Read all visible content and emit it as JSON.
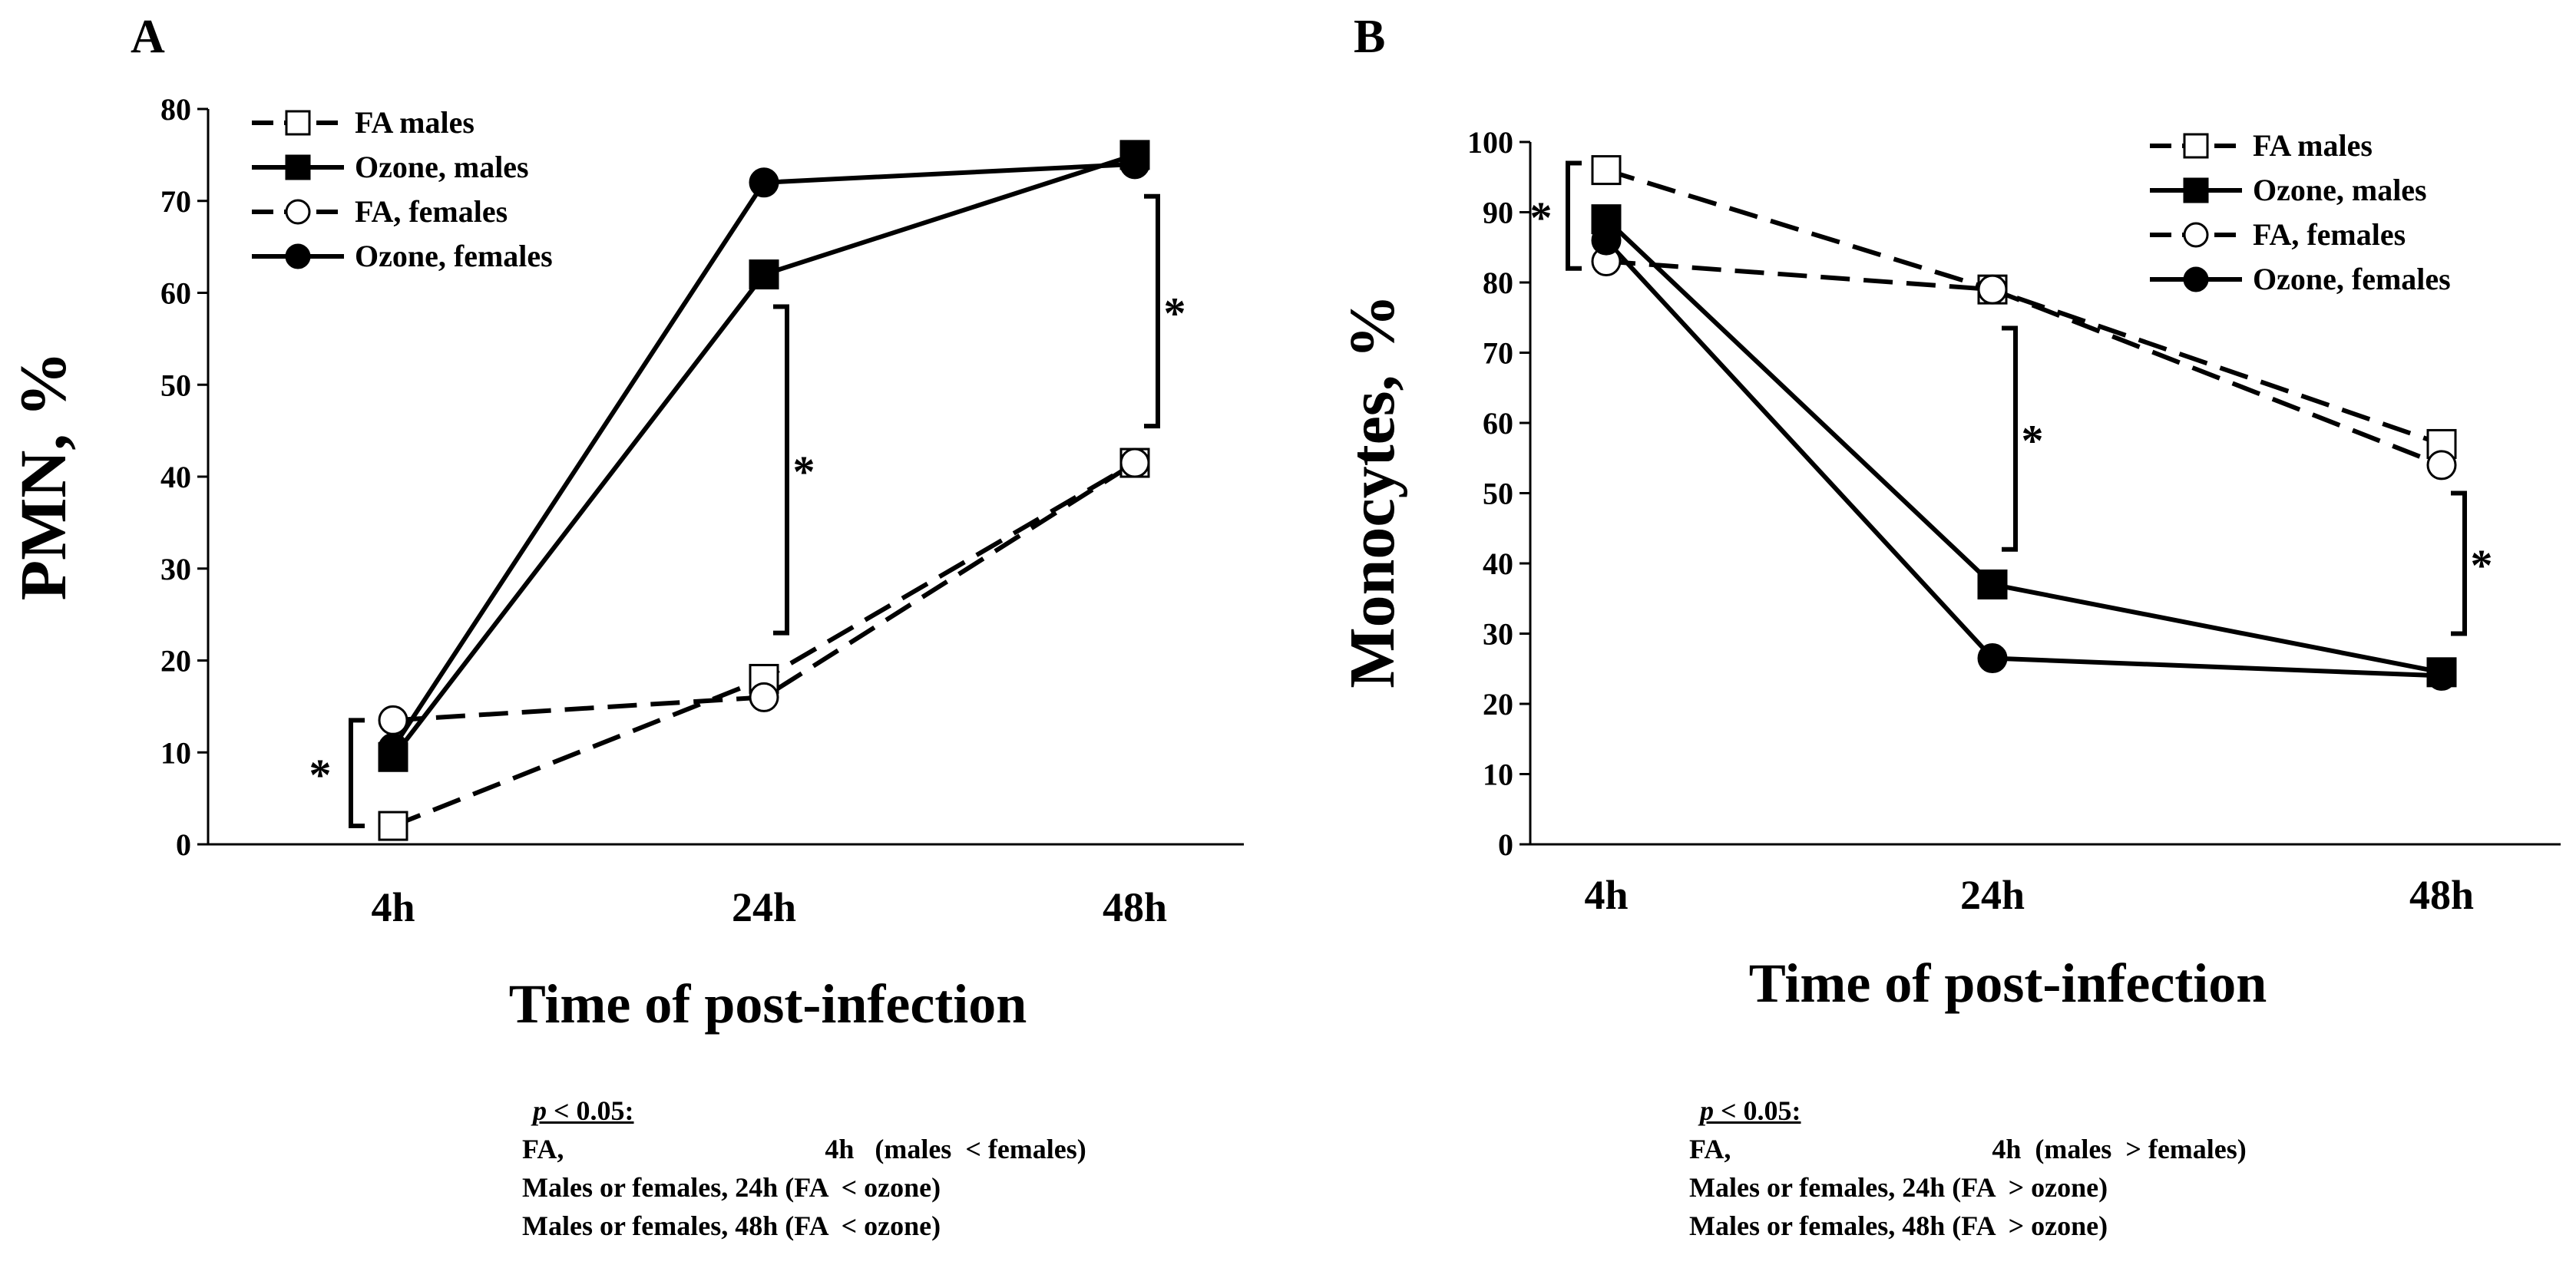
{
  "chart_data": [
    {
      "type": "line",
      "panel_label": "A",
      "categories": [
        "4h",
        "24h",
        "48h"
      ],
      "xlabel": "Time of post-infection",
      "ylabel": "PMN, %",
      "ylim": [
        0,
        80
      ],
      "yticks": [
        "0",
        "10",
        "20",
        "30",
        "40",
        "50",
        "60",
        "70",
        "80"
      ],
      "grid": false,
      "legend_position": "top-left",
      "series": [
        {
          "name": "FA males",
          "values": [
            2,
            18,
            41.5
          ],
          "line": "dashed",
          "marker": "open-square"
        },
        {
          "name": "Ozone, males",
          "values": [
            9.5,
            62,
            75
          ],
          "line": "solid",
          "marker": "filled-square"
        },
        {
          "name": "FA, females",
          "values": [
            13.5,
            16,
            41.5
          ],
          "line": "dashed",
          "marker": "open-circle"
        },
        {
          "name": "Ozone, females",
          "values": [
            10.5,
            72,
            74
          ],
          "line": "solid",
          "marker": "filled-circle"
        }
      ],
      "significance": [
        {
          "x": "4h",
          "from": 2,
          "to": 13.5,
          "label": "*"
        },
        {
          "x": "24h",
          "from": 23,
          "to": 58.5,
          "label": "*"
        },
        {
          "x": "48h",
          "from": 45.5,
          "to": 70.5,
          "label": "*"
        }
      ],
      "notes": {
        "header_italic": "p",
        "header_rest": " < 0.05:",
        "rows": [
          {
            "a": "FA,",
            "b": "4h   (males  < females)"
          },
          {
            "a": "Males or females, 24h (FA  < ozone)",
            "b": ""
          },
          {
            "a": "Males or females, 48h (FA  < ozone)",
            "b": ""
          }
        ]
      }
    },
    {
      "type": "line",
      "panel_label": "B",
      "categories": [
        "4h",
        "24h",
        "48h"
      ],
      "xlabel": "Time of post-infection",
      "ylabel": "Monocytes, %",
      "ylim": [
        0,
        100
      ],
      "yticks": [
        "0",
        "10",
        "20",
        "30",
        "40",
        "50",
        "60",
        "70",
        "80",
        "90",
        "100"
      ],
      "grid": false,
      "legend_position": "top-right",
      "series": [
        {
          "name": "FA males",
          "values": [
            96,
            79,
            57
          ],
          "line": "dashed",
          "marker": "open-square"
        },
        {
          "name": "Ozone, males",
          "values": [
            89,
            37,
            24.5
          ],
          "line": "solid",
          "marker": "filled-square"
        },
        {
          "name": "FA, females",
          "values": [
            83,
            79,
            54
          ],
          "line": "dashed",
          "marker": "open-circle"
        },
        {
          "name": "Ozone, females",
          "values": [
            86,
            26.5,
            24
          ],
          "line": "solid",
          "marker": "filled-circle"
        }
      ],
      "significance": [
        {
          "x": "4h",
          "from": 82,
          "to": 97,
          "label": "*"
        },
        {
          "x": "24h",
          "from": 42,
          "to": 73.5,
          "label": "*"
        },
        {
          "x": "48h",
          "from": 30,
          "to": 50,
          "label": "*"
        }
      ],
      "notes": {
        "header_italic": "p",
        "header_rest": " < 0.05:",
        "rows": [
          {
            "a": "FA,",
            "b": "4h  (males  > females)"
          },
          {
            "a": "Males or females, 24h (FA  > ozone)",
            "b": ""
          },
          {
            "a": "Males or females, 48h (FA  > ozone)",
            "b": ""
          }
        ]
      }
    }
  ]
}
